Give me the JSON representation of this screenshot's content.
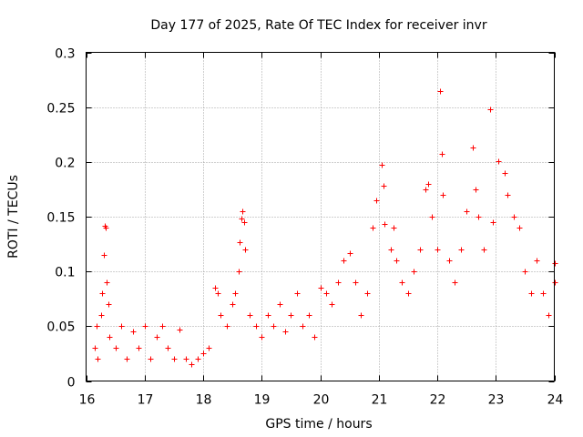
{
  "chart_data": {
    "type": "scatter",
    "title": "Day 177 of 2025, Rate Of TEC Index for receiver invr",
    "xlabel": "GPS time / hours",
    "ylabel": "ROTI / TECUs",
    "xlim": [
      16,
      24
    ],
    "ylim": [
      0,
      0.3
    ],
    "x_ticks": [
      16,
      17,
      18,
      19,
      20,
      21,
      22,
      23,
      24
    ],
    "x_tick_labels": [
      "16",
      "17",
      "18",
      "19",
      "20",
      "21",
      "22",
      "23",
      "24"
    ],
    "y_ticks": [
      0,
      0.05,
      0.1,
      0.15,
      0.2,
      0.25,
      0.3
    ],
    "y_tick_labels": [
      "0",
      "0.05",
      "0.1",
      "0.15",
      "0.2",
      "0.25",
      "0.3"
    ],
    "grid": true,
    "marker": "+",
    "marker_color": "#ff0000",
    "series": [
      {
        "name": "ROTI",
        "points": [
          [
            16.15,
            0.03
          ],
          [
            16.18,
            0.05
          ],
          [
            16.2,
            0.02
          ],
          [
            16.25,
            0.06
          ],
          [
            16.28,
            0.08
          ],
          [
            16.3,
            0.115
          ],
          [
            16.32,
            0.142
          ],
          [
            16.33,
            0.14
          ],
          [
            16.35,
            0.09
          ],
          [
            16.38,
            0.07
          ],
          [
            16.4,
            0.04
          ],
          [
            16.5,
            0.03
          ],
          [
            16.6,
            0.05
          ],
          [
            16.7,
            0.02
          ],
          [
            16.8,
            0.045
          ],
          [
            16.9,
            0.03
          ],
          [
            17.0,
            0.05
          ],
          [
            17.1,
            0.02
          ],
          [
            17.2,
            0.04
          ],
          [
            17.3,
            0.05
          ],
          [
            17.4,
            0.03
          ],
          [
            17.5,
            0.02
          ],
          [
            17.6,
            0.047
          ],
          [
            17.7,
            0.02
          ],
          [
            17.8,
            0.015
          ],
          [
            17.9,
            0.02
          ],
          [
            18.0,
            0.025
          ],
          [
            18.1,
            0.03
          ],
          [
            18.2,
            0.085
          ],
          [
            18.25,
            0.08
          ],
          [
            18.3,
            0.06
          ],
          [
            18.4,
            0.05
          ],
          [
            18.5,
            0.07
          ],
          [
            18.55,
            0.08
          ],
          [
            18.6,
            0.1
          ],
          [
            18.62,
            0.127
          ],
          [
            18.65,
            0.148
          ],
          [
            18.67,
            0.155
          ],
          [
            18.7,
            0.145
          ],
          [
            18.72,
            0.12
          ],
          [
            18.8,
            0.06
          ],
          [
            18.9,
            0.05
          ],
          [
            19.0,
            0.04
          ],
          [
            19.1,
            0.06
          ],
          [
            19.2,
            0.05
          ],
          [
            19.3,
            0.07
          ],
          [
            19.4,
            0.045
          ],
          [
            19.5,
            0.06
          ],
          [
            19.6,
            0.08
          ],
          [
            19.7,
            0.05
          ],
          [
            19.8,
            0.06
          ],
          [
            19.9,
            0.04
          ],
          [
            20.0,
            0.085
          ],
          [
            20.1,
            0.08
          ],
          [
            20.2,
            0.07
          ],
          [
            20.3,
            0.09
          ],
          [
            20.4,
            0.11
          ],
          [
            20.5,
            0.117
          ],
          [
            20.6,
            0.09
          ],
          [
            20.7,
            0.06
          ],
          [
            20.8,
            0.08
          ],
          [
            20.9,
            0.14
          ],
          [
            20.95,
            0.165
          ],
          [
            21.05,
            0.197
          ],
          [
            21.08,
            0.178
          ],
          [
            21.1,
            0.143
          ],
          [
            21.2,
            0.12
          ],
          [
            21.25,
            0.14
          ],
          [
            21.3,
            0.11
          ],
          [
            21.4,
            0.09
          ],
          [
            21.5,
            0.08
          ],
          [
            21.6,
            0.1
          ],
          [
            21.7,
            0.12
          ],
          [
            21.8,
            0.175
          ],
          [
            21.85,
            0.18
          ],
          [
            21.9,
            0.15
          ],
          [
            22.0,
            0.12
          ],
          [
            22.05,
            0.265
          ],
          [
            22.08,
            0.207
          ],
          [
            22.1,
            0.17
          ],
          [
            22.2,
            0.11
          ],
          [
            22.3,
            0.09
          ],
          [
            22.4,
            0.12
          ],
          [
            22.5,
            0.155
          ],
          [
            22.6,
            0.213
          ],
          [
            22.65,
            0.175
          ],
          [
            22.7,
            0.15
          ],
          [
            22.8,
            0.12
          ],
          [
            22.9,
            0.248
          ],
          [
            22.95,
            0.145
          ],
          [
            23.05,
            0.201
          ],
          [
            23.15,
            0.19
          ],
          [
            23.2,
            0.17
          ],
          [
            23.3,
            0.15
          ],
          [
            23.4,
            0.14
          ],
          [
            23.5,
            0.1
          ],
          [
            23.6,
            0.08
          ],
          [
            23.7,
            0.11
          ],
          [
            23.8,
            0.08
          ],
          [
            23.9,
            0.06
          ],
          [
            24.0,
            0.108
          ],
          [
            24.0,
            0.09
          ]
        ]
      }
    ]
  }
}
